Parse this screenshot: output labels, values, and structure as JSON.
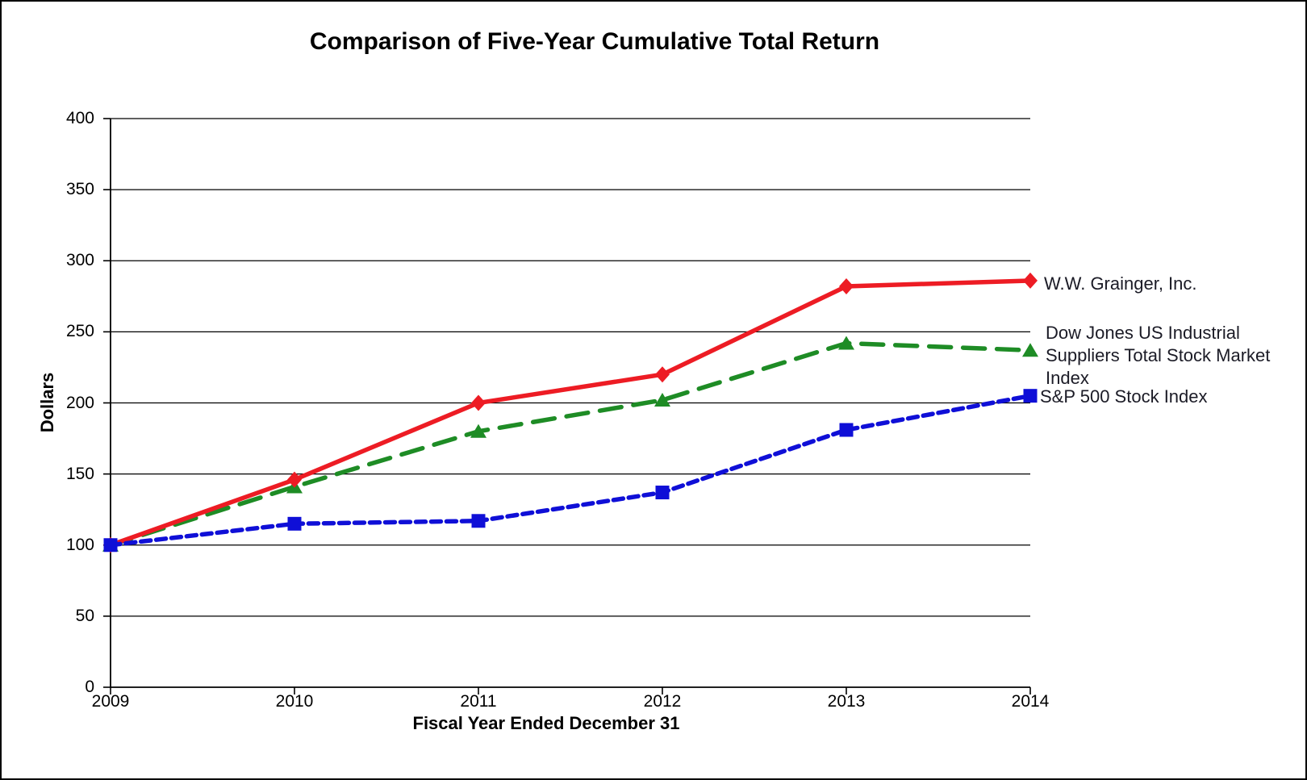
{
  "title": "Comparison of Five-Year Cumulative Total Return",
  "axes": {
    "y_label": "Dollars",
    "x_label": "Fiscal Year Ended December 31"
  },
  "chart_data": {
    "type": "line",
    "title": "Comparison of Five-Year Cumulative Total Return",
    "xlabel": "Fiscal Year Ended December 31",
    "ylabel": "Dollars",
    "x": [
      "2009",
      "2010",
      "2011",
      "2012",
      "2013",
      "2014"
    ],
    "ylim": [
      0,
      400
    ],
    "y_ticks": [
      0,
      50,
      100,
      150,
      200,
      250,
      300,
      350,
      400
    ],
    "grid": true,
    "legend_position": "right of line ends",
    "series": [
      {
        "key": "grainger",
        "name": "W.W. Grainger, Inc.",
        "legend": "W.W. Grainger, Inc.",
        "color": "#ED1C24",
        "marker": "diamond",
        "line_style": "solid",
        "values": [
          100,
          146,
          200,
          220,
          282,
          286
        ]
      },
      {
        "key": "dow-jones-industrial-suppliers",
        "name": "Dow Jones US Industrial Suppliers Total Stock Market Index",
        "legend": "Dow Jones US Industrial\nSuppliers Total Stock Market\nIndex",
        "color": "#1E8C25",
        "marker": "triangle",
        "line_style": "long-dash",
        "values": [
          100,
          141,
          180,
          202,
          242,
          237
        ]
      },
      {
        "key": "sp500",
        "name": "S&P 500 Stock Index",
        "legend": "S&P 500 Stock Index",
        "color": "#0F0FD7",
        "marker": "square",
        "line_style": "short-dash",
        "values": [
          100,
          115,
          117,
          137,
          181,
          205
        ]
      }
    ],
    "draw_order": [
      1,
      0,
      2
    ],
    "axis_color": "#000000",
    "grid_color": "#000000"
  }
}
